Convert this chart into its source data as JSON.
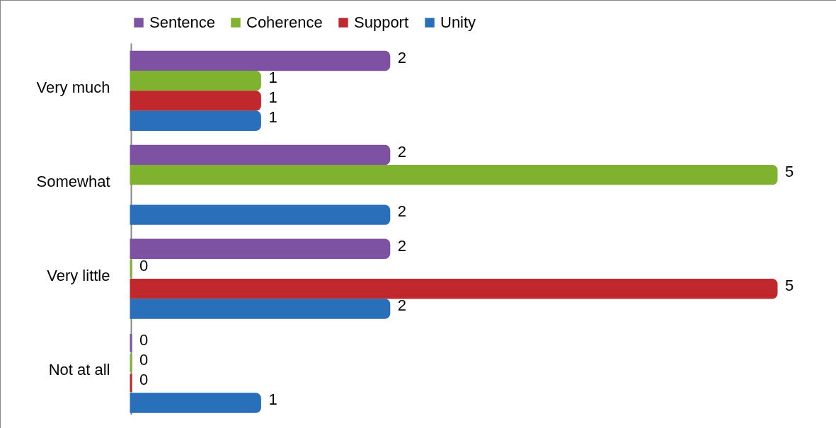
{
  "chart_data": {
    "type": "bar",
    "orientation": "horizontal",
    "categories": [
      "Very much",
      "Somewhat",
      "Very little",
      "Not at all"
    ],
    "series": [
      {
        "name": "Sentence",
        "color": "#7e52a2",
        "values": [
          2,
          2,
          2,
          0
        ]
      },
      {
        "name": "Coherence",
        "color": "#7fb22e",
        "values": [
          1,
          5,
          0,
          0
        ]
      },
      {
        "name": "Support",
        "color": "#c0282d",
        "values": [
          1,
          null,
          5,
          0
        ]
      },
      {
        "name": "Unity",
        "color": "#2a6fba",
        "values": [
          1,
          2,
          2,
          1
        ]
      }
    ],
    "data_labels": true,
    "legend": "top"
  }
}
